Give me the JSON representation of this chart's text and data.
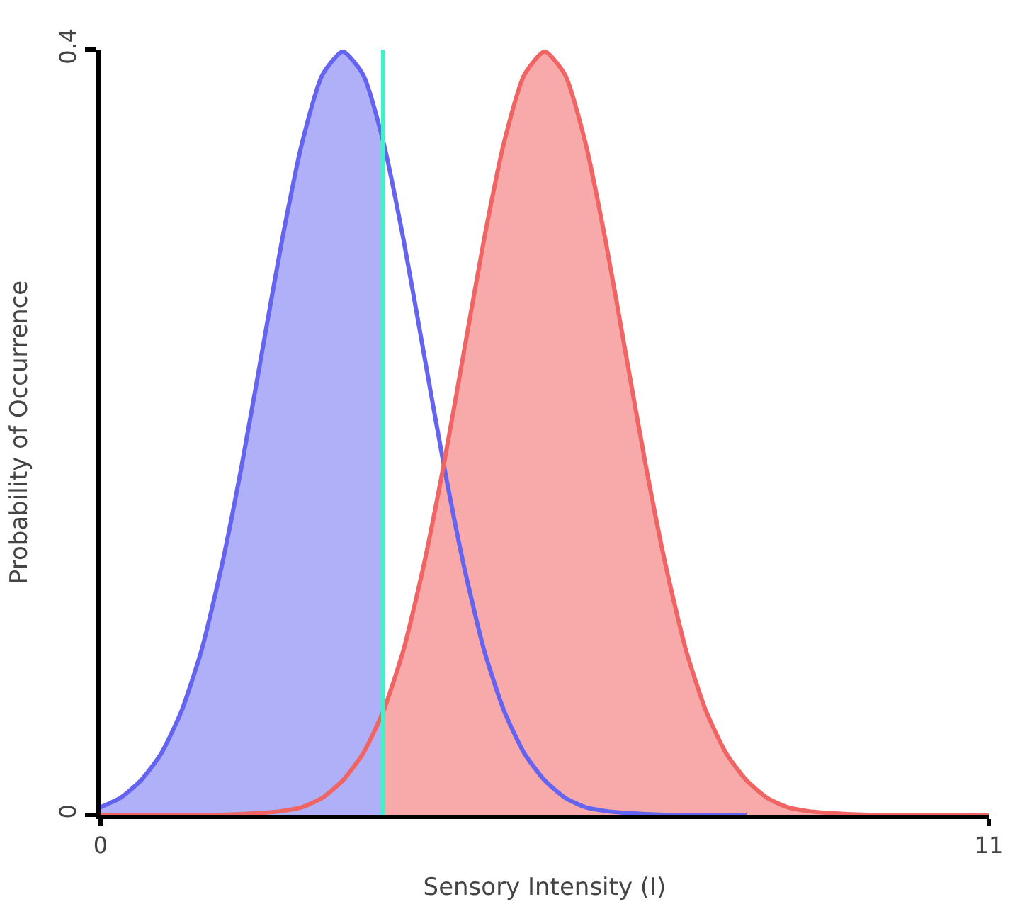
{
  "chart_data": {
    "type": "line",
    "xlabel": "Sensory Intensity (I)",
    "ylabel": "Probability of Occurrence",
    "xlim": [
      0,
      11
    ],
    "xticks": [
      0,
      11
    ],
    "ylim": [
      0,
      0.4
    ],
    "yticks": [
      0,
      0.4
    ],
    "marker": "none",
    "line_style": "solid",
    "series": [
      {
        "type": "area",
        "color": "#b0b0f8",
        "x": [
          0,
          0.25,
          0.5,
          0.75,
          1,
          1.25,
          1.5,
          1.75,
          2,
          2.25,
          2.5,
          2.75,
          3,
          3.25,
          3.5
        ],
        "values": [
          0.004,
          0.009,
          0.018,
          0.032,
          0.054,
          0.086,
          0.13,
          0.183,
          0.242,
          0.301,
          0.352,
          0.387,
          0.399,
          0.387,
          0.352
        ]
      },
      {
        "type": "area",
        "color": "#f8aaaa",
        "x": [
          3.5,
          3.75,
          4,
          4.25,
          4.5,
          4.75,
          5,
          5.25,
          5.5,
          5.75,
          6,
          6.25,
          6.5,
          6.75,
          7,
          7.25,
          7.5,
          7.75,
          8,
          8.25,
          8.5,
          8.75,
          9,
          9.5,
          11
        ],
        "values": [
          0.054,
          0.086,
          0.13,
          0.183,
          0.242,
          0.301,
          0.352,
          0.387,
          0.399,
          0.387,
          0.352,
          0.301,
          0.242,
          0.183,
          0.13,
          0.086,
          0.054,
          0.032,
          0.018,
          0.009,
          0.004,
          0.002,
          0.001,
          0,
          0
        ]
      },
      {
        "color": "#6464f0",
        "x": [
          0,
          0.25,
          0.5,
          0.75,
          1,
          1.25,
          1.5,
          1.75,
          2,
          2.25,
          2.5,
          2.75,
          3,
          3.25,
          3.5,
          3.75,
          4,
          4.25,
          4.5,
          4.75,
          5,
          5.25,
          5.5,
          5.75,
          6,
          6.25,
          6.5,
          7,
          8
        ],
        "values": [
          0.004,
          0.009,
          0.018,
          0.032,
          0.054,
          0.086,
          0.13,
          0.183,
          0.242,
          0.301,
          0.352,
          0.387,
          0.399,
          0.387,
          0.352,
          0.301,
          0.242,
          0.183,
          0.13,
          0.086,
          0.054,
          0.032,
          0.018,
          0.009,
          0.004,
          0.002,
          0.001,
          0,
          0
        ]
      },
      {
        "color": "#f06464",
        "x": [
          0,
          1.5,
          2,
          2.25,
          2.5,
          2.75,
          3,
          3.25,
          3.5,
          3.75,
          4,
          4.25,
          4.5,
          4.75,
          5,
          5.25,
          5.5,
          5.75,
          6,
          6.25,
          6.5,
          6.75,
          7,
          7.25,
          7.5,
          7.75,
          8,
          8.25,
          8.5,
          8.75,
          9,
          9.5,
          11
        ],
        "values": [
          0,
          0,
          0.001,
          0.002,
          0.004,
          0.009,
          0.018,
          0.032,
          0.054,
          0.086,
          0.13,
          0.183,
          0.242,
          0.301,
          0.352,
          0.387,
          0.399,
          0.387,
          0.352,
          0.301,
          0.242,
          0.183,
          0.13,
          0.086,
          0.054,
          0.032,
          0.018,
          0.009,
          0.004,
          0.002,
          0.001,
          0,
          0
        ]
      }
    ],
    "ref_lines": [
      {
        "axis": "x",
        "value": 3.5,
        "color": "#40f0c8",
        "line_style": "solid"
      }
    ]
  }
}
